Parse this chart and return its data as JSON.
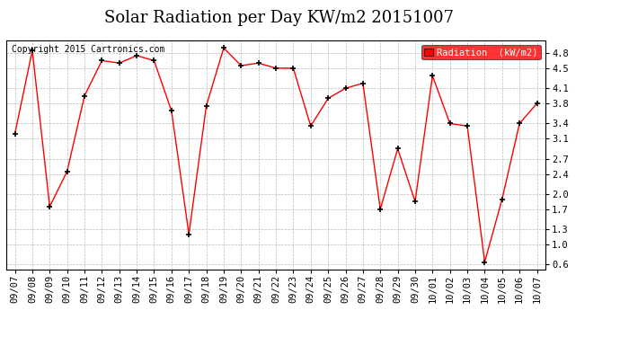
{
  "title": "Solar Radiation per Day KW/m2 20151007",
  "copyright": "Copyright 2015 Cartronics.com",
  "legend_label": "Radiation  (kW/m2)",
  "dates": [
    "09/07",
    "09/08",
    "09/09",
    "09/10",
    "09/11",
    "09/12",
    "09/13",
    "09/14",
    "09/15",
    "09/16",
    "09/17",
    "09/18",
    "09/19",
    "09/20",
    "09/21",
    "09/22",
    "09/23",
    "09/24",
    "09/25",
    "09/26",
    "09/27",
    "09/28",
    "09/29",
    "09/30",
    "10/01",
    "10/02",
    "10/03",
    "10/04",
    "10/05",
    "10/06",
    "10/07"
  ],
  "values": [
    3.2,
    4.85,
    1.75,
    2.45,
    3.95,
    4.65,
    4.6,
    4.75,
    4.65,
    3.65,
    1.2,
    3.75,
    4.9,
    4.55,
    4.6,
    4.5,
    4.5,
    3.35,
    3.9,
    4.1,
    4.2,
    1.7,
    2.9,
    1.85,
    4.35,
    3.4,
    3.35,
    0.65,
    1.9,
    3.4,
    3.8
  ],
  "ylim": [
    0.5,
    5.05
  ],
  "yticks": [
    0.6,
    1.0,
    1.3,
    1.7,
    2.0,
    2.4,
    2.7,
    3.1,
    3.4,
    3.8,
    4.1,
    4.5,
    4.8
  ],
  "line_color": "red",
  "marker_color": "black",
  "bg_color": "white",
  "grid_color": "#bbbbbb",
  "title_fontsize": 13,
  "copyright_fontsize": 7,
  "tick_fontsize": 7.5,
  "legend_bg": "red",
  "legend_text_color": "white",
  "legend_fontsize": 7.5
}
